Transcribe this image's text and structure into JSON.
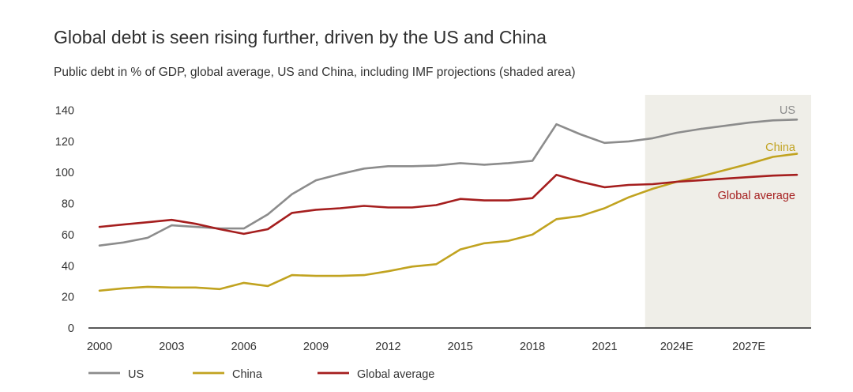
{
  "chart_data": {
    "type": "line",
    "title": "Global debt is seen rising further, driven by the US and China",
    "subtitle": "Public debt in % of GDP, global average, US and China, including IMF projections (shaded area)",
    "xlabel": "",
    "ylabel": "",
    "x": [
      2000,
      2001,
      2002,
      2003,
      2004,
      2005,
      2006,
      2007,
      2008,
      2009,
      2010,
      2011,
      2012,
      2013,
      2014,
      2015,
      2016,
      2017,
      2018,
      2019,
      2020,
      2021,
      2022,
      2023,
      2024,
      2025,
      2026,
      2027,
      2028,
      2029
    ],
    "x_tick_values": [
      2000,
      2003,
      2006,
      2009,
      2012,
      2015,
      2018,
      2021,
      2024,
      2027
    ],
    "x_tick_labels": [
      "2000",
      "2003",
      "2006",
      "2009",
      "2012",
      "2015",
      "2018",
      "2021",
      "2024E",
      "2027E"
    ],
    "xlim": [
      2000,
      2029.3
    ],
    "ylim": [
      0,
      140
    ],
    "y_ticks": [
      0,
      20,
      40,
      60,
      80,
      100,
      120,
      140
    ],
    "projection_range": [
      2024,
      2029.3
    ],
    "grid": false,
    "legend_position": "bottom-left",
    "series": [
      {
        "name": "US",
        "color": "#8c8c8c",
        "end_label": "US",
        "values": [
          53,
          55,
          58,
          66,
          65,
          64,
          64,
          73,
          86,
          95,
          99,
          102.5,
          104,
          104,
          104.5,
          106,
          105,
          106,
          107.5,
          131,
          124.5,
          119,
          120,
          122,
          125.5,
          128,
          130,
          132,
          133.5,
          134
        ]
      },
      {
        "name": "China",
        "color": "#c1a320",
        "end_label": "China",
        "values": [
          24,
          25.5,
          26.5,
          26,
          26,
          25,
          29,
          27,
          34,
          33.5,
          33.5,
          34,
          36.5,
          39.5,
          41,
          50.5,
          54.5,
          56,
          60,
          70,
          72,
          77,
          84,
          89.5,
          94,
          97.5,
          101.5,
          105.5,
          110,
          112
        ]
      },
      {
        "name": "Global average",
        "color": "#a51e1e",
        "end_label": "Global average",
        "values": [
          65,
          66.5,
          68,
          69.5,
          67,
          63.5,
          60.5,
          63.5,
          74,
          76,
          77,
          78.5,
          77.5,
          77.5,
          79,
          83,
          82,
          82,
          83.5,
          98.5,
          94,
          90.5,
          92,
          92.5,
          94,
          95,
          96,
          97,
          98,
          98.5
        ]
      }
    ]
  }
}
